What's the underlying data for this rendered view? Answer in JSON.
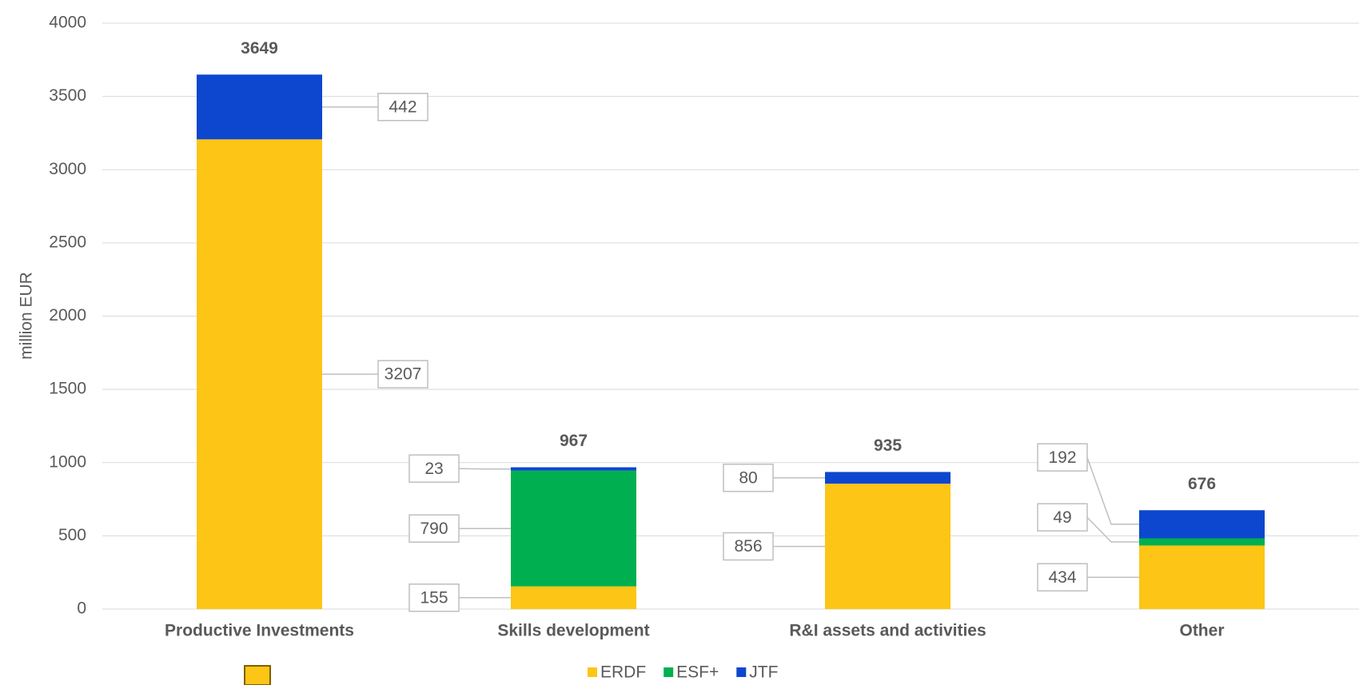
{
  "chart_data": {
    "type": "stacked_bar",
    "y_label": "million EUR",
    "categories": [
      "Productive Investments",
      "Skills development",
      "R&I assets and activities",
      "Other"
    ],
    "series": [
      {
        "name": "ERDF",
        "color": "#fdc515",
        "values": [
          3207,
          155,
          856,
          434
        ]
      },
      {
        "name": "ESF+",
        "color": "#00b050",
        "values": [
          null,
          790,
          null,
          49
        ]
      },
      {
        "name": "JTF",
        "color": "#0d47cf",
        "values": [
          442,
          23,
          80,
          192
        ]
      }
    ],
    "totals": [
      3649,
      967,
      935,
      676
    ],
    "ylim": [
      0,
      4000
    ],
    "yticks": [
      0,
      500,
      1000,
      1500,
      2000,
      2500,
      3000,
      3500,
      4000
    ],
    "grid": true,
    "legend": "bottom"
  }
}
